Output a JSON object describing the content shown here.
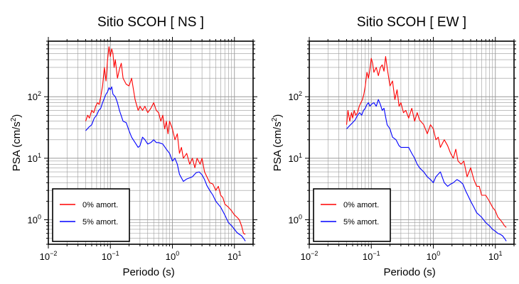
{
  "chart_data": [
    {
      "type": "line",
      "title": "Sitio SCOH [ NS ]",
      "xlabel": "Periodo (s)",
      "ylabel": "PSA (cm/s²)",
      "ylabel_main": "PSA (cm/s",
      "ylabel_sup": "2",
      "ylabel_tail": ")",
      "xscale": "log",
      "yscale": "log",
      "xlim": [
        0.01,
        20
      ],
      "ylim": [
        0.4,
        800
      ],
      "x_ticks": [
        {
          "value": 0.01,
          "base": "10",
          "exp": "−2"
        },
        {
          "value": 0.1,
          "base": "10",
          "exp": "−1"
        },
        {
          "value": 1,
          "base": "10",
          "exp": "0"
        },
        {
          "value": 10,
          "base": "10",
          "exp": "1"
        }
      ],
      "y_ticks": [
        {
          "value": 1,
          "base": "10",
          "exp": "0"
        },
        {
          "value": 10,
          "base": "10",
          "exp": "1"
        },
        {
          "value": 100,
          "base": "10",
          "exp": "2"
        }
      ],
      "grid": true,
      "legend_position": "bottom-left",
      "series": [
        {
          "name": "0% amort.",
          "color": "#ff0000",
          "x": [
            0.04,
            0.043,
            0.046,
            0.05,
            0.054,
            0.058,
            0.062,
            0.066,
            0.07,
            0.075,
            0.08,
            0.085,
            0.09,
            0.095,
            0.1,
            0.105,
            0.11,
            0.115,
            0.12,
            0.13,
            0.14,
            0.15,
            0.16,
            0.18,
            0.2,
            0.22,
            0.25,
            0.28,
            0.3,
            0.33,
            0.36,
            0.4,
            0.45,
            0.5,
            0.55,
            0.6,
            0.65,
            0.7,
            0.75,
            0.8,
            0.85,
            0.9,
            1.0,
            1.1,
            1.2,
            1.3,
            1.4,
            1.5,
            1.7,
            1.9,
            2.1,
            2.3,
            2.5,
            2.8,
            3.0,
            3.3,
            3.6,
            4.0,
            4.5,
            5.0,
            5.5,
            6.0,
            6.5,
            7.0,
            8.0,
            9.0,
            10.0,
            11.0,
            12.0,
            13.0,
            14.0,
            15.0
          ],
          "y": [
            40,
            50,
            45,
            60,
            55,
            70,
            80,
            75,
            100,
            150,
            300,
            180,
            400,
            650,
            450,
            600,
            500,
            300,
            400,
            200,
            280,
            350,
            200,
            160,
            150,
            200,
            90,
            60,
            70,
            60,
            70,
            55,
            65,
            80,
            60,
            55,
            40,
            50,
            30,
            40,
            25,
            40,
            30,
            20,
            25,
            12,
            15,
            10,
            12,
            8,
            10,
            7,
            10,
            8,
            10,
            6,
            5,
            4,
            3.8,
            3,
            3.5,
            2.5,
            2.3,
            1.8,
            1.6,
            1.4,
            1.2,
            1.1,
            1.0,
            0.8,
            0.6,
            0.58
          ]
        },
        {
          "name": "5% amort.",
          "color": "#0000ff",
          "x": [
            0.04,
            0.045,
            0.05,
            0.055,
            0.06,
            0.065,
            0.07,
            0.075,
            0.08,
            0.085,
            0.09,
            0.095,
            0.1,
            0.105,
            0.11,
            0.12,
            0.13,
            0.14,
            0.16,
            0.18,
            0.2,
            0.22,
            0.25,
            0.28,
            0.3,
            0.33,
            0.36,
            0.4,
            0.45,
            0.5,
            0.55,
            0.6,
            0.7,
            0.8,
            0.9,
            1.0,
            1.1,
            1.2,
            1.3,
            1.5,
            1.7,
            1.9,
            2.1,
            2.4,
            2.7,
            3.0,
            3.3,
            3.6,
            4.0,
            4.5,
            5.0,
            6.0,
            7.0,
            8.0,
            9.0,
            10.0,
            11.0,
            12.0,
            13.0,
            14.0,
            15.0
          ],
          "y": [
            28,
            32,
            35,
            45,
            50,
            60,
            65,
            80,
            95,
            110,
            120,
            140,
            130,
            145,
            110,
            100,
            80,
            60,
            40,
            38,
            28,
            22,
            18,
            15,
            16,
            22,
            20,
            17,
            18,
            20,
            18,
            18,
            17,
            14,
            12,
            9,
            10,
            8,
            5.5,
            4.2,
            4.6,
            4.8,
            5.0,
            5.8,
            6.0,
            5.4,
            4.5,
            3.6,
            3.0,
            2.5,
            2.0,
            1.6,
            1.2,
            0.9,
            0.8,
            0.7,
            0.62,
            0.58,
            0.55,
            0.5,
            0.45
          ]
        }
      ]
    },
    {
      "type": "line",
      "title": "Sitio SCOH [ EW ]",
      "xlabel": "Periodo (s)",
      "ylabel": "PSA (cm/s²)",
      "ylabel_main": "PSA (cm/s",
      "ylabel_sup": "2",
      "ylabel_tail": ")",
      "xscale": "log",
      "yscale": "log",
      "xlim": [
        0.01,
        20
      ],
      "ylim": [
        0.4,
        800
      ],
      "x_ticks": [
        {
          "value": 0.01,
          "base": "10",
          "exp": "−2"
        },
        {
          "value": 0.1,
          "base": "10",
          "exp": "−1"
        },
        {
          "value": 1,
          "base": "10",
          "exp": "0"
        },
        {
          "value": 10,
          "base": "10",
          "exp": "1"
        }
      ],
      "y_ticks": [
        {
          "value": 1,
          "base": "10",
          "exp": "0"
        },
        {
          "value": 10,
          "base": "10",
          "exp": "1"
        },
        {
          "value": 100,
          "base": "10",
          "exp": "2"
        }
      ],
      "grid": true,
      "legend_position": "bottom-left",
      "series": [
        {
          "name": "0% amort.",
          "color": "#ff0000",
          "x": [
            0.04,
            0.042,
            0.045,
            0.048,
            0.05,
            0.053,
            0.056,
            0.06,
            0.064,
            0.068,
            0.072,
            0.076,
            0.08,
            0.085,
            0.09,
            0.095,
            0.1,
            0.105,
            0.11,
            0.12,
            0.13,
            0.14,
            0.15,
            0.16,
            0.17,
            0.18,
            0.2,
            0.22,
            0.24,
            0.26,
            0.28,
            0.3,
            0.33,
            0.36,
            0.4,
            0.45,
            0.5,
            0.55,
            0.6,
            0.7,
            0.8,
            0.9,
            1.0,
            1.1,
            1.2,
            1.3,
            1.5,
            1.7,
            1.9,
            2.1,
            2.3,
            2.5,
            2.8,
            3.1,
            3.5,
            4.0,
            4.5,
            5.0,
            5.5,
            6.0,
            7.0,
            8.0,
            9.0,
            10.0,
            11.0,
            12.0,
            13.0,
            14.0,
            15.0
          ],
          "y": [
            35,
            60,
            40,
            55,
            45,
            60,
            50,
            55,
            70,
            80,
            90,
            110,
            150,
            250,
            200,
            280,
            420,
            350,
            250,
            300,
            220,
            300,
            330,
            260,
            450,
            300,
            150,
            180,
            90,
            130,
            70,
            80,
            55,
            60,
            45,
            65,
            40,
            55,
            42,
            35,
            25,
            35,
            30,
            20,
            22,
            15,
            20,
            16,
            12,
            10,
            14,
            9,
            8,
            9,
            5,
            7,
            4.5,
            3.5,
            3.5,
            2.5,
            2.5,
            2.0,
            1.6,
            1.4,
            1.1,
            1.0,
            0.9,
            0.8,
            0.75
          ]
        },
        {
          "name": "5% amort.",
          "color": "#0000ff",
          "x": [
            0.04,
            0.045,
            0.05,
            0.055,
            0.06,
            0.065,
            0.07,
            0.075,
            0.08,
            0.085,
            0.09,
            0.095,
            0.1,
            0.11,
            0.12,
            0.13,
            0.14,
            0.15,
            0.16,
            0.18,
            0.2,
            0.22,
            0.25,
            0.28,
            0.3,
            0.33,
            0.36,
            0.4,
            0.45,
            0.5,
            0.55,
            0.6,
            0.7,
            0.8,
            0.9,
            1.0,
            1.1,
            1.2,
            1.3,
            1.5,
            1.7,
            1.9,
            2.1,
            2.4,
            2.7,
            3.0,
            3.3,
            3.6,
            4.0,
            4.5,
            5.0,
            6.0,
            7.0,
            8.0,
            9.0,
            10.0,
            11.0,
            12.0,
            13.0,
            14.0,
            15.0
          ],
          "y": [
            30,
            34,
            38,
            42,
            50,
            55,
            50,
            60,
            65,
            75,
            80,
            70,
            75,
            80,
            70,
            90,
            75,
            60,
            65,
            35,
            30,
            22,
            20,
            16,
            15,
            15,
            15,
            15,
            12,
            10,
            8,
            7,
            6,
            5,
            4.5,
            4,
            5,
            5.5,
            6,
            4.0,
            3.5,
            3.8,
            4.0,
            4.5,
            4.2,
            3.8,
            3.0,
            2.5,
            2.0,
            1.6,
            1.3,
            1.1,
            0.9,
            0.8,
            0.7,
            0.65,
            0.6,
            0.58,
            0.55,
            0.5,
            0.45
          ]
        }
      ]
    }
  ]
}
